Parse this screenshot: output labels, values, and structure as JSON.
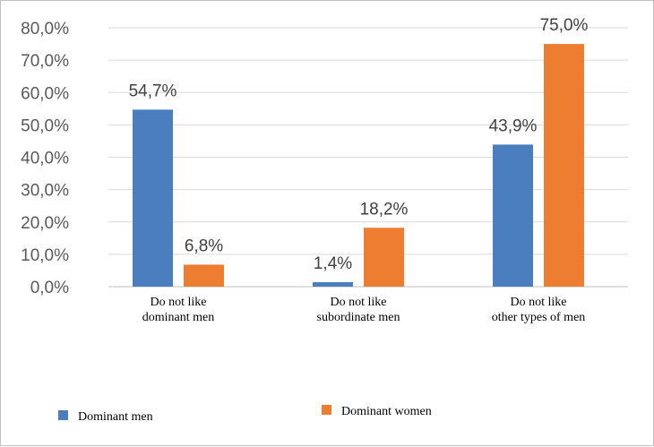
{
  "chart_data": {
    "type": "bar",
    "categories": [
      [
        "Do not like",
        "dominant men"
      ],
      [
        "Do not like",
        "subordinate men"
      ],
      [
        "Do not like",
        "other types of men"
      ]
    ],
    "series": [
      {
        "name": "Dominant men",
        "color": "#4a7ebf",
        "values": [
          54.7,
          1.4,
          43.9
        ],
        "labels": [
          "54,7%",
          "1,4%",
          "43,9%"
        ]
      },
      {
        "name": "Dominant women",
        "color": "#ed7d31",
        "values": [
          6.8,
          18.2,
          75.0
        ],
        "labels": [
          "6,8%",
          "18,2%",
          "75,0%"
        ]
      }
    ],
    "ylim": [
      0,
      80
    ],
    "yticks": [
      0,
      10,
      20,
      30,
      40,
      50,
      60,
      70,
      80
    ],
    "ytick_labels": [
      "0,0%",
      "10,0%",
      "20,0%",
      "30,0%",
      "40,0%",
      "50,0%",
      "60,0%",
      "70,0%",
      "80,0%"
    ],
    "grid": true,
    "legend_position": "bottom"
  }
}
